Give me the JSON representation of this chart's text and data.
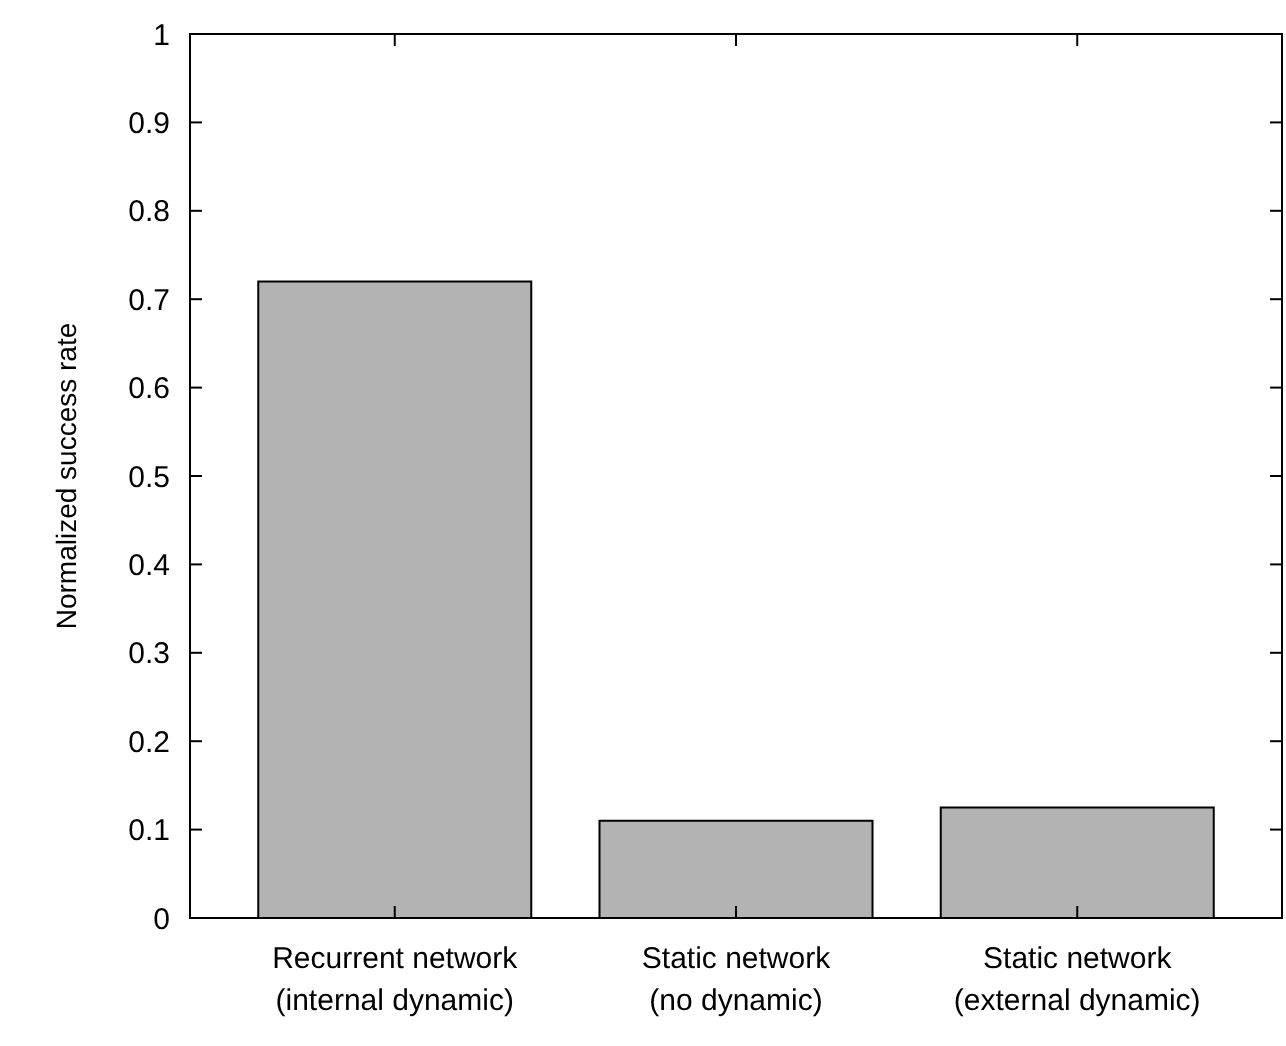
{
  "chart_data": {
    "type": "bar",
    "ylabel": "Normalized success rate",
    "categories": [
      "Recurrent network\n(internal dynamic)",
      "Static network\n(no dynamic)",
      "Static network\n(external dynamic)"
    ],
    "values": [
      0.72,
      0.11,
      0.125
    ],
    "color": "#b3b3b3",
    "ylim": [
      0,
      1
    ],
    "yticks": [
      0,
      0.1,
      0.2,
      0.3,
      0.4,
      0.5,
      0.6,
      0.7,
      0.8,
      0.9,
      1
    ]
  }
}
